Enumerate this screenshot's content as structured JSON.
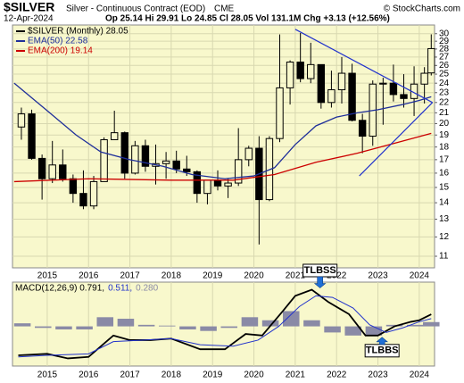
{
  "header": {
    "symbol": "$SILVER",
    "name": "Silver - Continuous Contract (EOD)",
    "exchange": "CME",
    "source": "© StockCharts.com",
    "date": "12-Apr-2024",
    "stats": "Op 25.14 Hi 29.91 Lo 24.85 Cl 28.05 Vol 131.1M Chg +3.13 (+12.56%)"
  },
  "chart_data": [
    {
      "type": "candlestick",
      "log_scale": true,
      "grid": true,
      "background": "#f8f8cc",
      "xlim": [
        2014.16,
        2024.37
      ],
      "xticks": [
        2015,
        2016,
        2017,
        2018,
        2019,
        2020,
        2021,
        2022,
        2023,
        2024
      ],
      "ylim": [
        10.44,
        31.2
      ],
      "yticks": [
        11,
        12,
        13,
        14,
        15,
        16,
        17,
        18,
        19,
        20,
        21,
        22,
        23,
        24,
        25,
        26,
        27,
        28,
        29,
        30
      ],
      "candles": {
        "name": "$SILVER (Monthly) 28.05",
        "color": "#000000",
        "x": [
          2014.375,
          2014.625,
          2014.875,
          2015.125,
          2015.375,
          2015.625,
          2015.875,
          2016.125,
          2016.375,
          2016.625,
          2016.875,
          2017.125,
          2017.375,
          2017.625,
          2017.875,
          2018.125,
          2018.375,
          2018.625,
          2018.875,
          2019.125,
          2019.375,
          2019.625,
          2019.875,
          2020.125,
          2020.375,
          2020.625,
          2020.875,
          2021.125,
          2021.375,
          2021.625,
          2021.875,
          2022.125,
          2022.375,
          2022.625,
          2022.875,
          2023.125,
          2023.375,
          2023.625,
          2023.875,
          2024.125,
          2024.29
        ],
        "open": [
          19.7,
          20.9,
          17.1,
          15.6,
          16.6,
          15.6,
          14.6,
          13.8,
          15.4,
          18.6,
          19.2,
          16.0,
          18.1,
          16.5,
          16.7,
          16.9,
          16.3,
          16.1,
          14.6,
          15.5,
          15.1,
          15.3,
          17.0,
          17.9,
          14.2,
          18.7,
          23.5,
          26.4,
          24.5,
          26.1,
          22.0,
          23.3,
          25.1,
          20.3,
          18.9,
          23.9,
          24.0,
          22.8,
          22.4,
          23.9,
          25.14
        ],
        "high": [
          21.5,
          21.3,
          17.4,
          18.5,
          17.8,
          15.9,
          16.2,
          15.8,
          18.8,
          21.2,
          19.3,
          18.5,
          18.6,
          18.2,
          17.6,
          17.7,
          17.3,
          16.2,
          15.5,
          16.2,
          15.6,
          19.6,
          18.1,
          18.9,
          18.9,
          29.9,
          26.6,
          30.1,
          28.8,
          26.1,
          25.4,
          27.0,
          26.2,
          20.9,
          24.3,
          24.6,
          26.1,
          25.0,
          25.9,
          25.8,
          29.91
        ],
        "low": [
          18.6,
          17.0,
          14.2,
          15.3,
          15.4,
          14.0,
          13.6,
          13.6,
          15.4,
          18.6,
          15.6,
          15.9,
          16.1,
          15.2,
          15.6,
          16.0,
          15.8,
          14.0,
          13.9,
          14.8,
          14.3,
          15.1,
          16.5,
          11.6,
          14.1,
          18.4,
          21.8,
          24.1,
          24.0,
          21.4,
          21.5,
          21.9,
          20.2,
          17.5,
          18.1,
          19.9,
          22.1,
          21.5,
          20.7,
          21.9,
          24.85
        ],
        "close": [
          20.9,
          17.1,
          15.6,
          16.6,
          15.6,
          14.6,
          13.8,
          15.4,
          18.6,
          19.2,
          16.0,
          18.1,
          16.5,
          16.7,
          16.9,
          16.3,
          16.1,
          14.6,
          15.5,
          15.1,
          15.3,
          17.0,
          17.9,
          14.2,
          18.7,
          23.5,
          26.4,
          24.5,
          26.1,
          22.0,
          23.3,
          25.1,
          20.3,
          18.9,
          23.9,
          24.0,
          22.8,
          22.4,
          23.9,
          25.1,
          28.05
        ]
      },
      "series": [
        {
          "name": "EMA(50) 22.58",
          "color": "#1f2f9a",
          "x": [
            2014.2,
            2015.0,
            2015.7,
            2016.3,
            2017.0,
            2017.8,
            2018.5,
            2019.3,
            2020.0,
            2020.5,
            2021.0,
            2021.5,
            2022.0,
            2022.5,
            2023.0,
            2023.6,
            2024.0,
            2024.29
          ],
          "values": [
            24.0,
            21.2,
            19.0,
            17.6,
            17.0,
            16.5,
            15.9,
            15.6,
            15.8,
            16.4,
            18.2,
            19.8,
            20.6,
            21.0,
            21.3,
            21.8,
            22.2,
            22.58
          ]
        },
        {
          "name": "EMA(200) 19.14",
          "color": "#cc0000",
          "x": [
            2014.2,
            2016.0,
            2018.0,
            2019.5,
            2020.5,
            2021.5,
            2022.5,
            2023.5,
            2024.29
          ],
          "values": [
            15.4,
            15.6,
            15.5,
            15.5,
            15.9,
            16.8,
            17.5,
            18.4,
            19.14
          ]
        }
      ],
      "trendlines": [
        {
          "color": "#2233cc",
          "x": [
            2021.0,
            2024.32
          ],
          "y": [
            30.6,
            22.0
          ]
        },
        {
          "color": "#2233cc",
          "x": [
            2022.55,
            2024.32
          ],
          "y": [
            15.8,
            22.0
          ]
        }
      ]
    },
    {
      "type": "macd",
      "grid": true,
      "background": "#f8f8cc",
      "xlim": [
        2014.16,
        2024.37
      ],
      "xticks": [
        2015,
        2016,
        2017,
        2018,
        2019,
        2020,
        2021,
        2022,
        2023,
        2024
      ],
      "ylim": [
        -2.6,
        2.9
      ],
      "series": [
        {
          "name": "MACD(12,26,9) 0.791,",
          "color": "#000000",
          "x": [
            2014.3,
            2015.0,
            2015.5,
            2016.0,
            2016.6,
            2017.0,
            2017.5,
            2018.0,
            2018.7,
            2019.3,
            2019.8,
            2020.2,
            2020.7,
            2021.0,
            2021.4,
            2021.8,
            2022.3,
            2022.7,
            2023.0,
            2023.4,
            2023.8,
            2024.0,
            2024.29
          ],
          "values": [
            -1.9,
            -1.8,
            -2.1,
            -2.0,
            -0.6,
            -0.9,
            -0.9,
            -0.8,
            -1.5,
            -1.5,
            -0.5,
            -0.6,
            1.0,
            2.0,
            2.4,
            1.6,
            0.8,
            -0.6,
            -0.6,
            0.0,
            0.3,
            0.4,
            0.79
          ]
        },
        {
          "name": "0.511,",
          "color": "#2233cc",
          "x": [
            2014.3,
            2015.0,
            2016.0,
            2016.6,
            2017.3,
            2018.0,
            2018.7,
            2019.5,
            2020.1,
            2020.6,
            2021.1,
            2021.5,
            2021.9,
            2022.4,
            2022.8,
            2023.2,
            2023.6,
            2024.0,
            2024.29
          ],
          "values": [
            -2.0,
            -1.9,
            -1.8,
            -1.0,
            -0.9,
            -0.8,
            -1.2,
            -1.3,
            -0.9,
            0.0,
            1.3,
            2.0,
            1.9,
            1.2,
            0.1,
            -0.4,
            -0.1,
            0.3,
            0.51
          ]
        }
      ],
      "histogram": {
        "name": "0.280",
        "color": "#8a8aa6",
        "x": [
          2014.4,
          2014.9,
          2015.4,
          2015.9,
          2016.4,
          2016.9,
          2017.4,
          2017.9,
          2018.4,
          2018.9,
          2019.4,
          2019.9,
          2020.4,
          2020.9,
          2021.4,
          2021.9,
          2022.4,
          2022.9,
          2023.4,
          2023.9,
          2024.29
        ],
        "values": [
          0.2,
          -0.1,
          -0.2,
          -0.2,
          0.6,
          0.5,
          0.1,
          0.05,
          -0.2,
          -0.3,
          -0.1,
          0.6,
          0.4,
          1.0,
          0.4,
          -0.4,
          -0.6,
          -0.6,
          0.1,
          0.1,
          0.28
        ]
      },
      "annotations": [
        {
          "text": "TLBSS",
          "x": 2021.6,
          "y": 2.4,
          "position": "above"
        },
        {
          "text": "TLBBS",
          "x": 2023.1,
          "y": -0.6,
          "position": "below"
        }
      ]
    }
  ]
}
